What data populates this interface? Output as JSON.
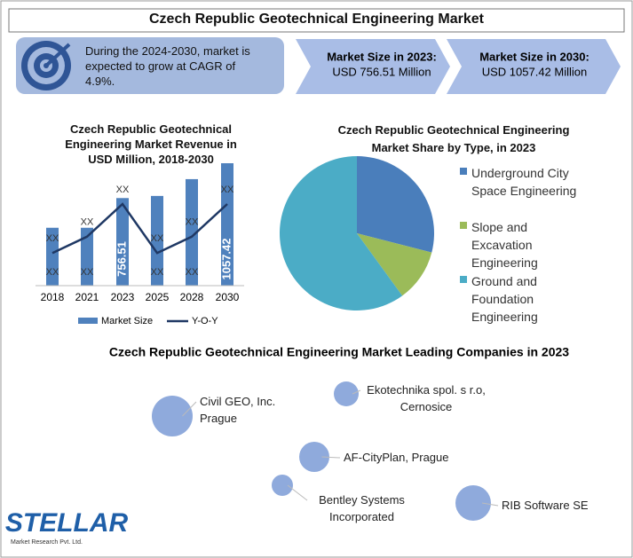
{
  "title": "Czech Republic Geotechnical Engineering Market",
  "highlight": "During the 2024-2030, market is expected to grow at CAGR of 4.9%.",
  "stats": [
    {
      "label": "Market Size in 2023:",
      "value": "USD 756.51 Million"
    },
    {
      "label": "Market Size in 2030:",
      "value": "USD 1057.42 Million"
    }
  ],
  "chart_data": [
    {
      "type": "bar",
      "title": "Czech Republic Geotechnical Engineering Market Revenue in USD Million, 2018-2030",
      "categories": [
        "2018",
        "2021",
        "2023",
        "2025",
        "2028",
        "2030"
      ],
      "series": [
        {
          "name": "Market Size",
          "type": "bar",
          "color": "#4f81bd",
          "values": [
            500,
            500,
            756.51,
            775,
            920,
            1057.42
          ],
          "value_labels": [
            "XX",
            "XX",
            "756.51",
            "XX",
            "XX",
            "1057.42"
          ]
        },
        {
          "name": "Y-O-Y",
          "type": "line",
          "color": "#1f3864",
          "values": [
            4,
            6,
            10,
            4,
            6,
            10
          ],
          "value_labels": [
            "XX",
            "XX",
            "XX",
            "XX",
            "XX",
            "XX"
          ]
        }
      ],
      "legend": "bottom"
    },
    {
      "type": "pie",
      "title": "Czech Republic Geotechnical Engineering Market Share by Type, in 2023",
      "categories": [
        "Underground City Space Engineering",
        "Slope and Excavation Engineering",
        "Ground and Foundation Engineering"
      ],
      "values": [
        29,
        11,
        60
      ],
      "colors": [
        "#4a7ebb",
        "#9bbb59",
        "#4bacc6"
      ],
      "legend": "right"
    }
  ],
  "companies": {
    "title": "Czech Republic Geotechnical Engineering Market Leading Companies in 2023",
    "items": [
      "Civil GEO, Inc. Prague",
      "Ekotechnika spol. s r.o, Cernosice",
      "AF-CityPlan, Prague",
      "Bentley Systems Incorporated",
      "RIB Software SE"
    ]
  },
  "logo": {
    "name": "STELLAR",
    "tagline": "Market Research Pvt. Ltd."
  }
}
